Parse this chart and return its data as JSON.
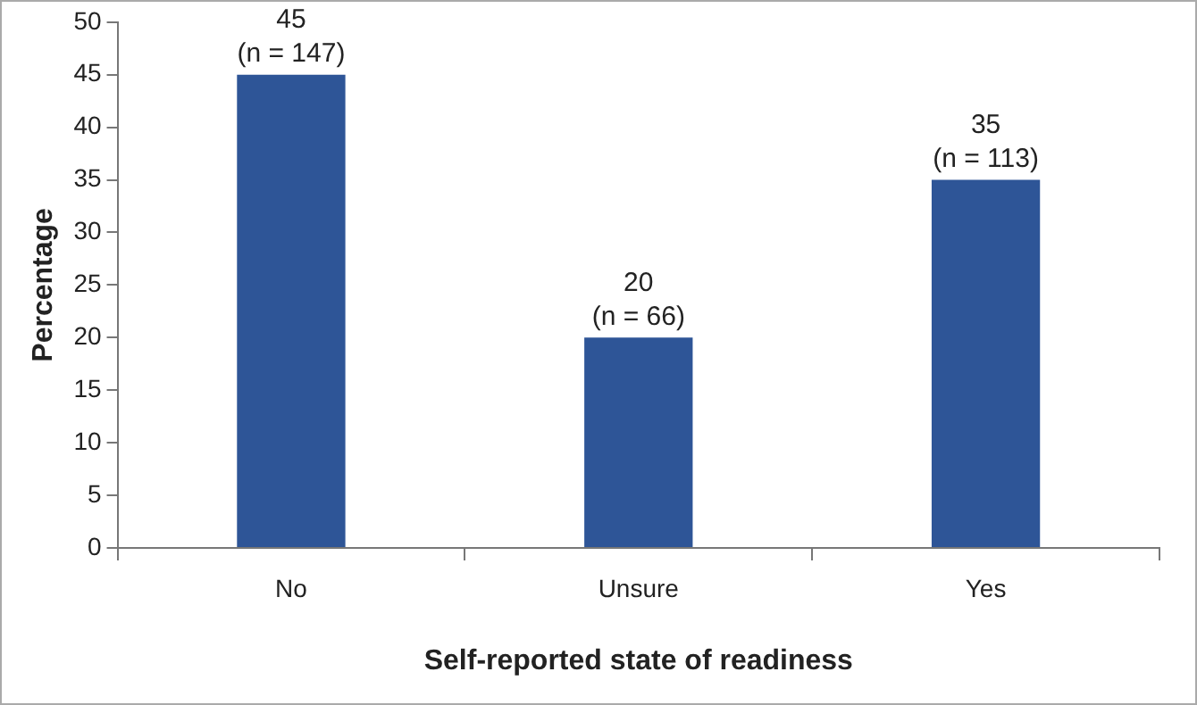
{
  "chart_data": {
    "type": "bar",
    "xlabel": "Self-reported state of readiness",
    "ylabel": "Percentage",
    "categories": [
      "No",
      "Unsure",
      "Yes"
    ],
    "values": [
      45,
      20,
      35
    ],
    "color": "#2e5597",
    "value_labels": [
      "45 (n = 147)",
      "20 (n = 66)",
      "35 (n = 113)"
    ],
    "ylim": [
      0,
      50
    ],
    "yticks": [
      0,
      5,
      10,
      15,
      20,
      25,
      30,
      35,
      40,
      45,
      50
    ],
    "grid": false,
    "legend": false
  }
}
